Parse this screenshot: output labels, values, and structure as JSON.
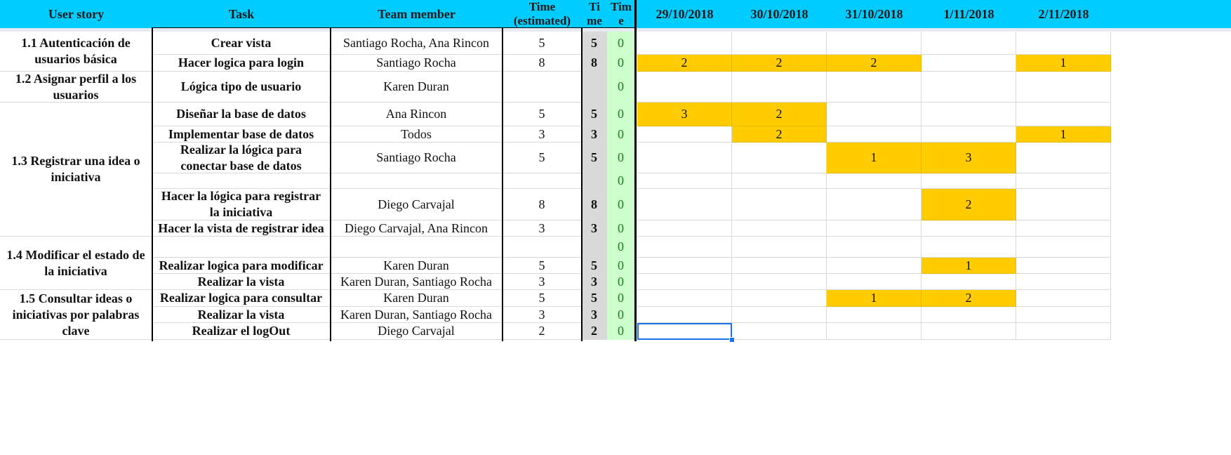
{
  "headers": {
    "user_story": "User story",
    "task": "Task",
    "team_member": "Team member",
    "time_estimated": "Time\n(estimated)",
    "time_spent": "Ti\nme",
    "time_remaining": "Tim\ne",
    "dates": [
      "29/10/2018",
      "30/10/2018",
      "31/10/2018",
      "1/11/2018",
      "2/11/2018"
    ]
  },
  "user_stories": [
    {
      "label": "1.1 Autenticación de usuarios básica"
    },
    {
      "label": "1.2 Asignar perfil a los usuarios"
    },
    {
      "label": "1.3 Registrar una idea o iniciativa"
    },
    {
      "label": "1.4 Modificar el estado de la iniciativa"
    },
    {
      "label": "1.5 Consultar ideas o iniciativas por palabras clave"
    }
  ],
  "rows": [
    {
      "task": "Crear vista",
      "member": "Santiago Rocha, Ana Rincon",
      "est": "5",
      "spent": "5",
      "rem": "0",
      "days": [
        "",
        "",
        "",
        "",
        ""
      ]
    },
    {
      "task": "Hacer logica para login",
      "member": "Santiago Rocha",
      "est": "8",
      "spent": "8",
      "rem": "0",
      "days": [
        "2",
        "2",
        "2",
        "",
        "1"
      ]
    },
    {
      "task": "Lógica tipo de usuario",
      "member": "Karen Duran",
      "est": "",
      "spent": "",
      "rem": "0",
      "days": [
        "",
        "",
        "",
        "",
        ""
      ]
    },
    {
      "task": "Diseñar la base de datos",
      "member": "Ana Rincon",
      "est": "5",
      "spent": "5",
      "rem": "0",
      "days": [
        "3",
        "2",
        "",
        "",
        ""
      ]
    },
    {
      "task": "Implementar base de datos",
      "member": "Todos",
      "est": "3",
      "spent": "3",
      "rem": "0",
      "days": [
        "",
        "2",
        "",
        "",
        "1"
      ]
    },
    {
      "task": "Realizar la lógica para conectar base de datos",
      "member": "Santiago Rocha",
      "est": "5",
      "spent": "5",
      "rem": "0",
      "days": [
        "",
        "",
        "1",
        "3",
        ""
      ]
    },
    {
      "task": "",
      "member": "",
      "est": "",
      "spent": "",
      "rem": "0",
      "days": [
        "",
        "",
        "",
        "",
        ""
      ]
    },
    {
      "task": "Hacer la lógica para registrar la iniciativa",
      "member": "Diego Carvajal",
      "est": "8",
      "spent": "8",
      "rem": "0",
      "days": [
        "",
        "",
        "",
        "2",
        ""
      ]
    },
    {
      "task": "Hacer la vista de registrar idea",
      "member": "Diego Carvajal, Ana Rincon",
      "est": "3",
      "spent": "3",
      "rem": "0",
      "days": [
        "",
        "",
        "",
        "",
        ""
      ]
    },
    {
      "task": "",
      "member": "",
      "est": "",
      "spent": "",
      "rem": "0",
      "days": [
        "",
        "",
        "",
        "",
        ""
      ]
    },
    {
      "task": "Realizar logica para modificar",
      "member": "Karen Duran",
      "est": "5",
      "spent": "5",
      "rem": "0",
      "days": [
        "",
        "",
        "",
        "1",
        ""
      ]
    },
    {
      "task": "Realizar la vista",
      "member": "Karen Duran, Santiago Rocha",
      "est": "3",
      "spent": "3",
      "rem": "0",
      "days": [
        "",
        "",
        "",
        "",
        ""
      ]
    },
    {
      "task": "Realizar logica para consultar",
      "member": "Karen Duran",
      "est": "5",
      "spent": "5",
      "rem": "0",
      "days": [
        "",
        "",
        "1",
        "2",
        ""
      ]
    },
    {
      "task": "Realizar la vista",
      "member": "Karen Duran, Santiago Rocha",
      "est": "3",
      "spent": "3",
      "rem": "0",
      "days": [
        "",
        "",
        "",
        "",
        ""
      ]
    },
    {
      "task": "Realizar el logOut",
      "member": "Diego Carvajal",
      "est": "2",
      "spent": "2",
      "rem": "0",
      "days": [
        "",
        "",
        "",
        "",
        ""
      ]
    }
  ],
  "highlighted_days": [
    [
      false,
      false,
      false,
      false,
      false
    ],
    [
      true,
      true,
      true,
      false,
      true
    ],
    [
      false,
      false,
      false,
      false,
      false
    ],
    [
      true,
      true,
      false,
      false,
      false
    ],
    [
      false,
      true,
      false,
      false,
      true
    ],
    [
      false,
      false,
      true,
      true,
      false
    ],
    [
      false,
      false,
      false,
      false,
      false
    ],
    [
      false,
      false,
      false,
      true,
      false
    ],
    [
      false,
      false,
      false,
      false,
      false
    ],
    [
      false,
      false,
      false,
      false,
      false
    ],
    [
      false,
      false,
      false,
      true,
      false
    ],
    [
      false,
      false,
      false,
      false,
      false
    ],
    [
      false,
      false,
      true,
      true,
      false
    ],
    [
      false,
      false,
      false,
      false,
      false
    ],
    [
      false,
      false,
      false,
      false,
      false
    ]
  ],
  "colors": {
    "header_bg": "#00ccff",
    "highlight": "#ffcc00",
    "spent_bg": "#d9d9d9",
    "remaining_bg": "#ccffcc",
    "selection": "#1a73e8"
  },
  "selected_cell": {
    "row": 14,
    "day_col": 0
  }
}
